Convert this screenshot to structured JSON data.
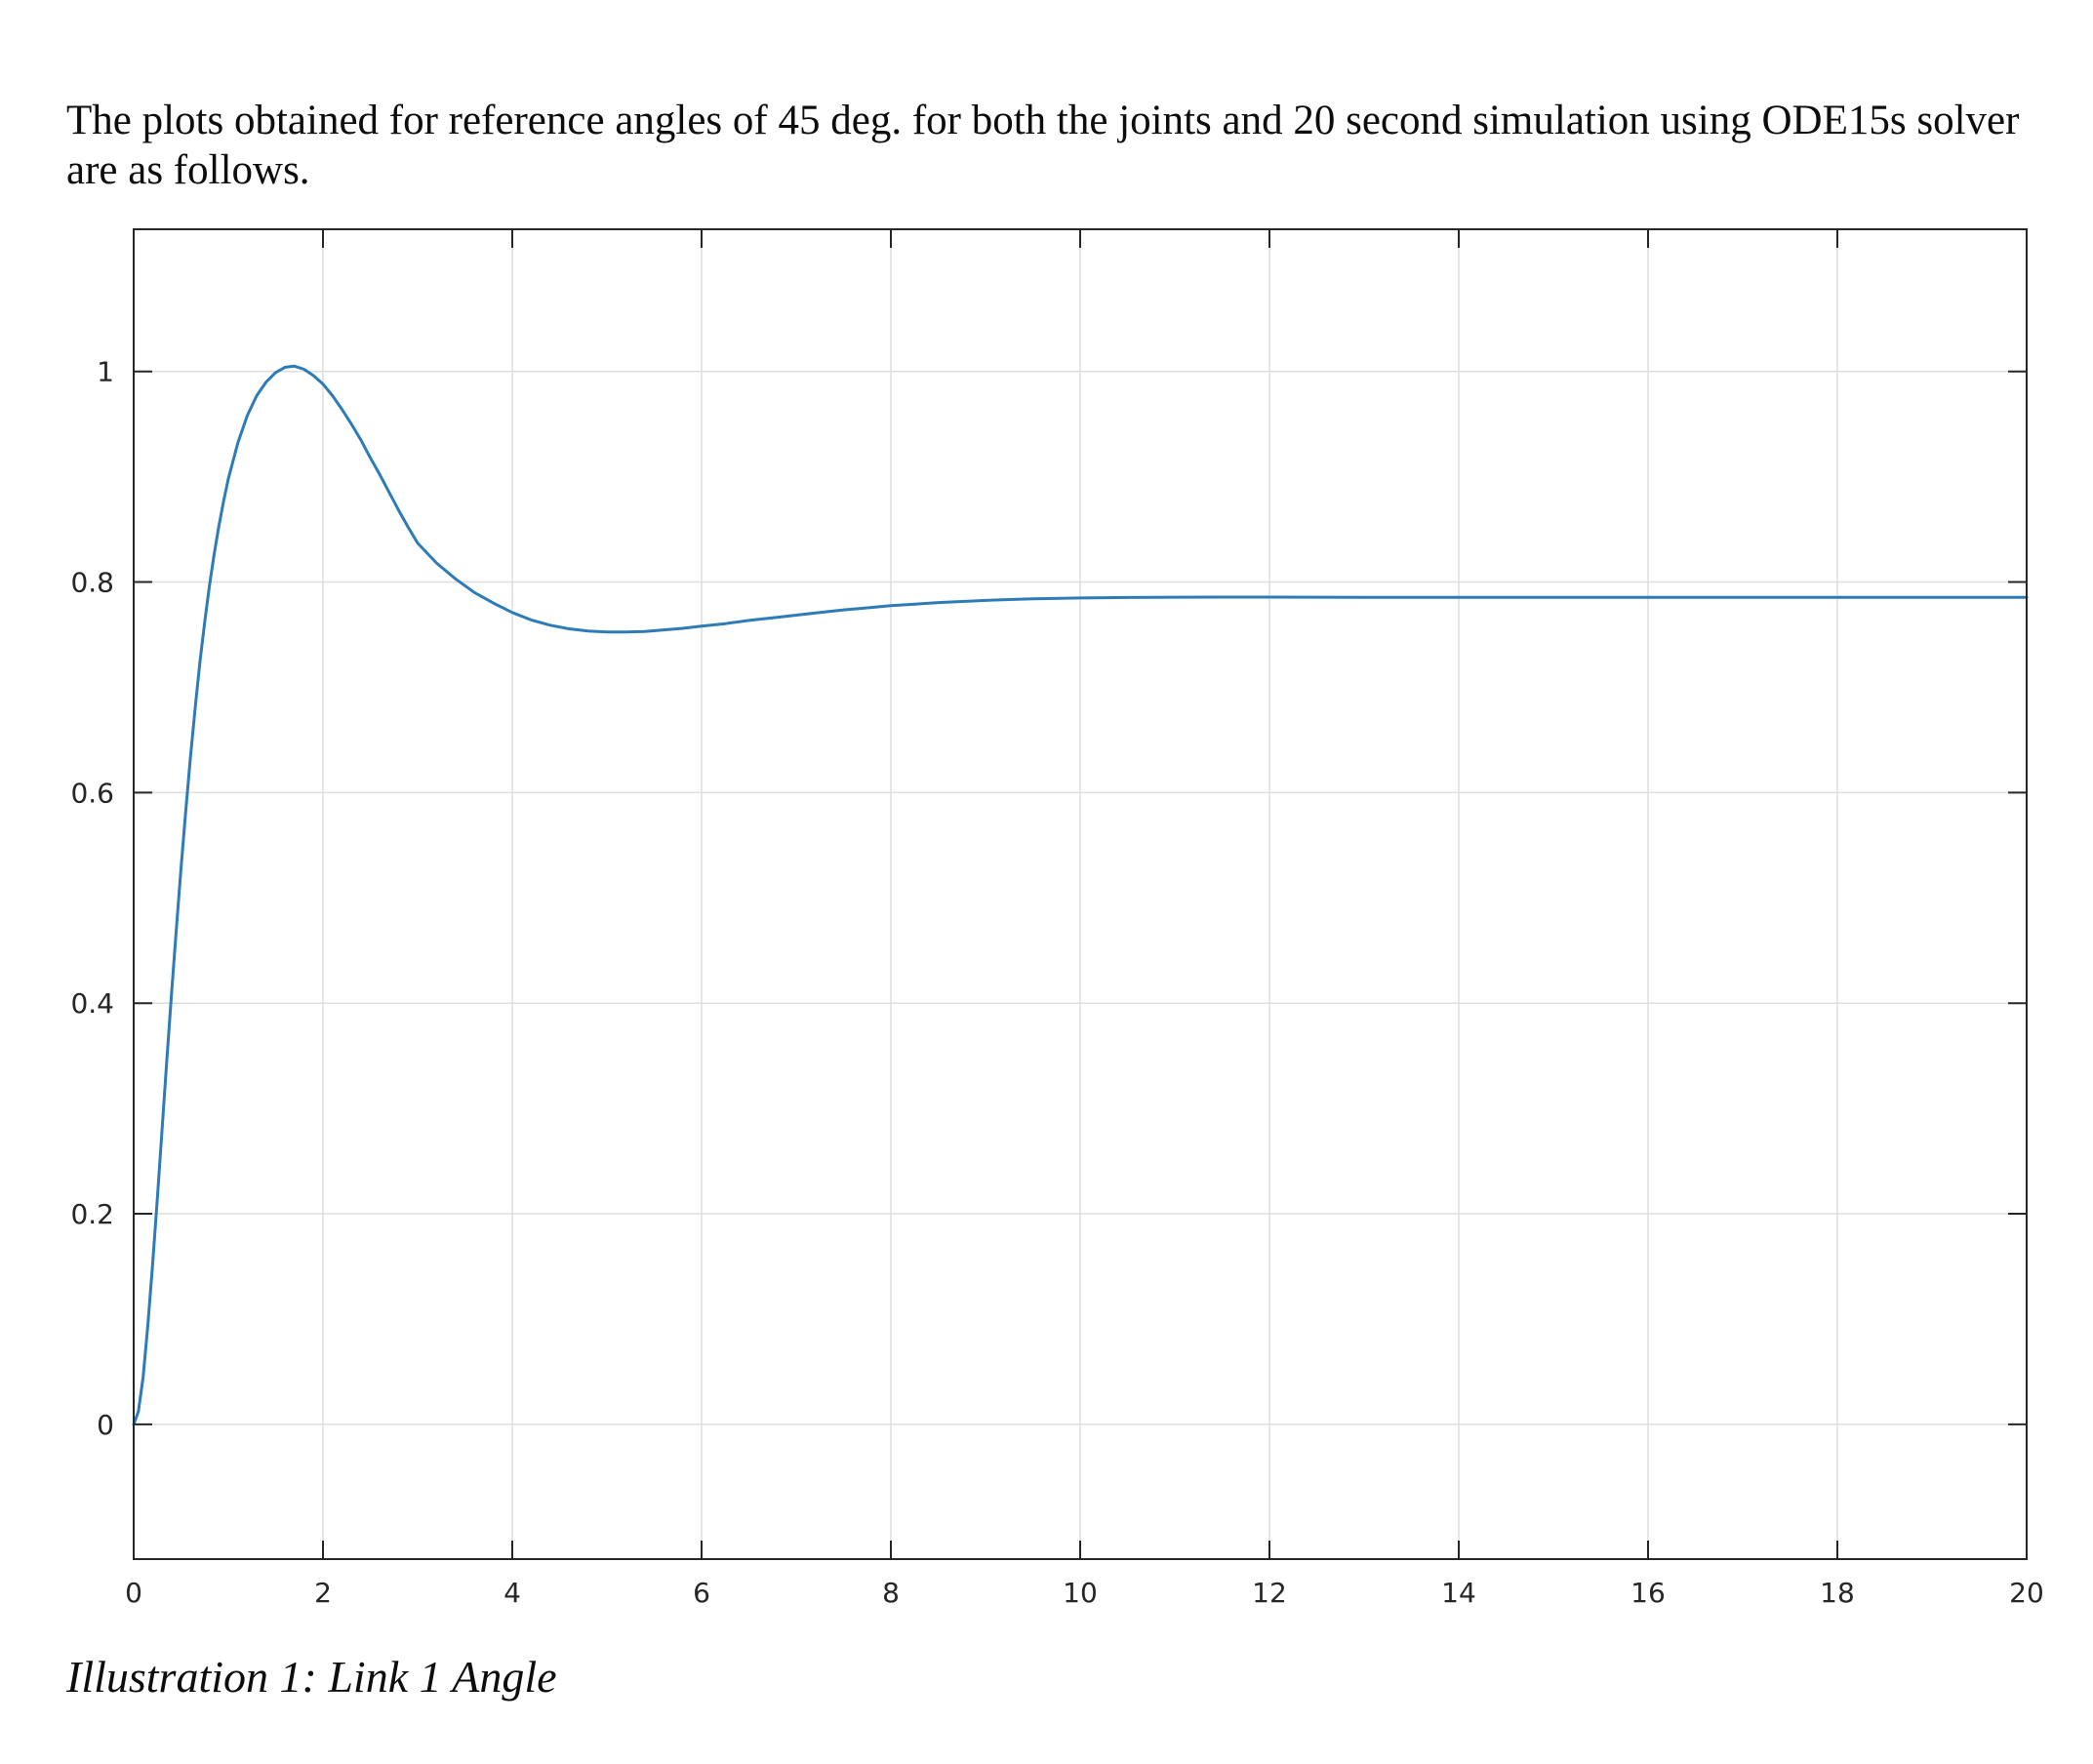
{
  "page": {
    "intro_text": "The plots obtained for reference angles of 45 deg. for both the joints and 20 second simulation using ODE15s solver are as follows.",
    "caption": "Illustration 1: Link 1 Angle"
  },
  "chart_data": {
    "type": "line",
    "title": "",
    "xlabel": "",
    "ylabel": "",
    "xlim": [
      0,
      20
    ],
    "ylim": [
      -0.128,
      1.135
    ],
    "x_ticks": [
      0,
      2,
      4,
      6,
      8,
      10,
      12,
      14,
      16,
      18,
      20
    ],
    "x_tick_labels": [
      "0",
      "2",
      "4",
      "6",
      "8",
      "10",
      "12",
      "14",
      "16",
      "18",
      "20"
    ],
    "y_ticks": [
      0,
      0.2,
      0.4,
      0.6,
      0.8,
      1
    ],
    "y_tick_labels": [
      "0",
      "0.2",
      "0.4",
      "0.6",
      "0.8",
      "1"
    ],
    "grid": true,
    "legend_position": "none",
    "colors": {
      "line": "#2d7cb8",
      "grid": "#dedede",
      "axis": "#262626",
      "tick_label": "#262626",
      "plot_background": "#ffffff"
    },
    "series": [
      {
        "name": "Link 1 Angle",
        "points": [
          [
            0,
            0
          ],
          [
            0.05,
            0.012
          ],
          [
            0.1,
            0.045
          ],
          [
            0.15,
            0.095
          ],
          [
            0.2,
            0.152
          ],
          [
            0.25,
            0.215
          ],
          [
            0.3,
            0.28
          ],
          [
            0.35,
            0.345
          ],
          [
            0.4,
            0.409
          ],
          [
            0.45,
            0.47
          ],
          [
            0.5,
            0.528
          ],
          [
            0.55,
            0.583
          ],
          [
            0.6,
            0.634
          ],
          [
            0.65,
            0.681
          ],
          [
            0.7,
            0.724
          ],
          [
            0.75,
            0.762
          ],
          [
            0.8,
            0.796
          ],
          [
            0.85,
            0.826
          ],
          [
            0.9,
            0.853
          ],
          [
            0.95,
            0.877
          ],
          [
            1.0,
            0.898
          ],
          [
            1.1,
            0.932
          ],
          [
            1.2,
            0.958
          ],
          [
            1.3,
            0.977
          ],
          [
            1.4,
            0.99
          ],
          [
            1.5,
            0.999
          ],
          [
            1.6,
            1.004
          ],
          [
            1.7,
            1.005
          ],
          [
            1.8,
            1.002
          ],
          [
            1.9,
            0.996
          ],
          [
            2.0,
            0.988
          ],
          [
            2.1,
            0.977
          ],
          [
            2.2,
            0.964
          ],
          [
            2.3,
            0.95
          ],
          [
            2.4,
            0.935
          ],
          [
            2.5,
            0.918
          ],
          [
            2.6,
            0.902
          ],
          [
            2.7,
            0.885
          ],
          [
            2.8,
            0.868
          ],
          [
            2.9,
            0.852
          ],
          [
            3.0,
            0.837
          ],
          [
            3.2,
            0.818
          ],
          [
            3.4,
            0.803
          ],
          [
            3.6,
            0.79
          ],
          [
            3.8,
            0.78
          ],
          [
            4.0,
            0.771
          ],
          [
            4.2,
            0.764
          ],
          [
            4.4,
            0.759
          ],
          [
            4.6,
            0.7555
          ],
          [
            4.8,
            0.7535
          ],
          [
            5.0,
            0.7525
          ],
          [
            5.2,
            0.7525
          ],
          [
            5.4,
            0.753
          ],
          [
            5.6,
            0.7545
          ],
          [
            5.8,
            0.756
          ],
          [
            6.0,
            0.758
          ],
          [
            6.25,
            0.7605
          ],
          [
            6.5,
            0.7635
          ],
          [
            6.75,
            0.766
          ],
          [
            7.0,
            0.7685
          ],
          [
            7.25,
            0.771
          ],
          [
            7.5,
            0.7735
          ],
          [
            7.75,
            0.7755
          ],
          [
            8.0,
            0.7775
          ],
          [
            8.25,
            0.779
          ],
          [
            8.5,
            0.7805
          ],
          [
            8.75,
            0.7815
          ],
          [
            9.0,
            0.7825
          ],
          [
            9.25,
            0.7833
          ],
          [
            9.5,
            0.784
          ],
          [
            10.0,
            0.7848
          ],
          [
            10.5,
            0.7853
          ],
          [
            11.0,
            0.7856
          ],
          [
            11.5,
            0.7857
          ],
          [
            12.0,
            0.7857
          ],
          [
            12.5,
            0.7856
          ],
          [
            13.0,
            0.7855
          ],
          [
            14.0,
            0.7854
          ],
          [
            15.0,
            0.7854
          ],
          [
            16.0,
            0.7854
          ],
          [
            17.0,
            0.7854
          ],
          [
            18.0,
            0.7854
          ],
          [
            19.0,
            0.7854
          ],
          [
            20.0,
            0.7854
          ]
        ]
      }
    ]
  }
}
